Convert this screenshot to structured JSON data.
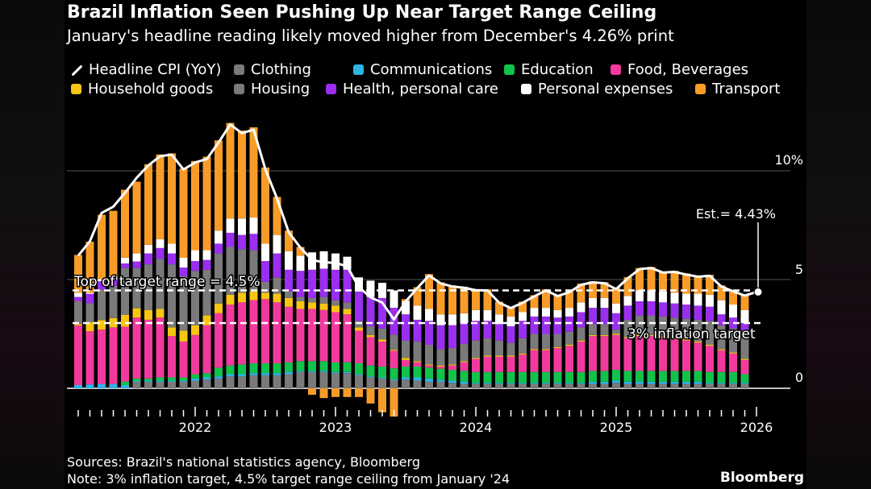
{
  "header": {
    "title": "Brazil Inflation Seen Pushing Up Near Target Range Ceiling",
    "subtitle": "January's headline reading likely moved higher from December's 4.26% print"
  },
  "footer": {
    "sources": "Sources: Brazil's national statistics agency, Bloomberg",
    "note": "Note: 3% inflation target, 4.5% target range ceiling from January '24",
    "brand": "Bloomberg"
  },
  "chart_data": {
    "type": "bar",
    "stacked": true,
    "title": "Brazil Inflation Seen Pushing Up Near Target Range Ceiling",
    "x_start": "2021-03",
    "x_end": "2025-12",
    "frequency": "monthly",
    "x_tick_labels": [
      "2022",
      "2023",
      "2024",
      "2025",
      "2026"
    ],
    "y_tick_labels": [
      "10%",
      "5",
      "0"
    ],
    "y_ticks": [
      10,
      5,
      0
    ],
    "ylim": [
      -1.4,
      12.5
    ],
    "grid": true,
    "legend_position": "top",
    "legend": [
      {
        "name": "Headline CPI (YoY)",
        "type": "line",
        "color": "#ffffff"
      },
      {
        "name": "Clothing",
        "color": "#7a7a7a"
      },
      {
        "name": "Communications",
        "color": "#2eb4e8"
      },
      {
        "name": "Education",
        "color": "#12c24a"
      },
      {
        "name": "Food, Beverages",
        "color": "#f23a9e"
      },
      {
        "name": "Household goods",
        "color": "#f7c513"
      },
      {
        "name": "Housing",
        "color": "#7a7a7a"
      },
      {
        "name": "Health, personal care",
        "color": "#9b2ff0"
      },
      {
        "name": "Personal expenses",
        "color": "#ffffff"
      },
      {
        "name": "Transport",
        "color": "#f89c28"
      }
    ],
    "series": [
      {
        "name": "Clothing",
        "color": "#7a7a7a",
        "values": [
          0,
          0,
          0,
          0,
          0,
          0.3,
          0.3,
          0.3,
          0.3,
          0.3,
          0.35,
          0.4,
          0.45,
          0.55,
          0.55,
          0.6,
          0.6,
          0.6,
          0.65,
          0.75,
          0.75,
          0.75,
          0.7,
          0.7,
          0.6,
          0.5,
          0.45,
          0.37,
          0.4,
          0.35,
          0.3,
          0.3,
          0.25,
          0.2,
          0.2,
          0.2,
          0.2,
          0.2,
          0.2,
          0.2,
          0.2,
          0.2,
          0.2,
          0.2,
          0.2,
          0.2,
          0.25,
          0.2,
          0.2,
          0.2,
          0.2,
          0.2,
          0.2,
          0.2,
          0.2,
          0.2,
          0.2,
          0.2
        ]
      },
      {
        "name": "Communications",
        "color": "#2eb4e8",
        "values": [
          0.15,
          0.18,
          0.2,
          0.2,
          0.15,
          0.05,
          0.05,
          0.05,
          0.05,
          0.05,
          0.1,
          0.1,
          0.1,
          0.1,
          0.1,
          0.1,
          0.1,
          0.1,
          0.1,
          0.05,
          0.05,
          0.05,
          0.05,
          0.05,
          0.05,
          0.05,
          0.05,
          0.05,
          0.1,
          0.15,
          0.15,
          0.1,
          0.1,
          0.1,
          0.05,
          0.05,
          0.05,
          0.05,
          0.05,
          0.05,
          0.05,
          0.05,
          0.05,
          0.05,
          0.1,
          0.1,
          0.1,
          0.1,
          0.1,
          0.1,
          0.1,
          0.1,
          0.1,
          0.1,
          0.05,
          0.05,
          0.05,
          0.05
        ]
      },
      {
        "name": "Education",
        "color": "#12c24a",
        "values": [
          0,
          0,
          0,
          0,
          0.15,
          0.1,
          0.1,
          0.15,
          0.15,
          0.15,
          0.2,
          0.2,
          0.4,
          0.4,
          0.45,
          0.45,
          0.45,
          0.45,
          0.45,
          0.45,
          0.45,
          0.45,
          0.45,
          0.45,
          0.5,
          0.5,
          0.5,
          0.5,
          0.5,
          0.5,
          0.5,
          0.5,
          0.5,
          0.5,
          0.5,
          0.5,
          0.5,
          0.5,
          0.5,
          0.5,
          0.5,
          0.5,
          0.5,
          0.5,
          0.5,
          0.5,
          0.5,
          0.5,
          0.5,
          0.5,
          0.5,
          0.5,
          0.5,
          0.5,
          0.5,
          0.5,
          0.5,
          0.4
        ]
      },
      {
        "name": "Food, Beverages",
        "color": "#f23a9e",
        "values": [
          2.74,
          2.44,
          2.5,
          2.6,
          2.53,
          2.8,
          2.7,
          2.75,
          1.9,
          1.65,
          1.8,
          2.2,
          2.5,
          2.8,
          2.85,
          2.9,
          2.95,
          2.8,
          2.55,
          2.4,
          2.4,
          2.35,
          2.3,
          2.2,
          1.5,
          1.3,
          1.15,
          0.8,
          0.3,
          0.2,
          0.1,
          0.1,
          0.2,
          0.4,
          0.6,
          0.7,
          0.7,
          0.7,
          0.8,
          1.0,
          1.0,
          1.1,
          1.2,
          1.4,
          1.6,
          1.6,
          1.6,
          1.5,
          1.6,
          1.6,
          1.55,
          1.45,
          1.4,
          1.3,
          1.2,
          1.0,
          0.85,
          0.65
        ]
      },
      {
        "name": "Household goods",
        "color": "#f7c513",
        "values": [
          0.06,
          0.43,
          0.43,
          0.43,
          0.55,
          0.43,
          0.45,
          0.4,
          0.4,
          0.5,
          0.45,
          0.45,
          0.45,
          0.45,
          0.45,
          0.4,
          0.3,
          0.4,
          0.4,
          0.35,
          0.3,
          0.3,
          0.3,
          0.25,
          0.15,
          0.1,
          0.1,
          0.05,
          0.1,
          0.05,
          0.05,
          0.05,
          0.05,
          0.05,
          0.05,
          0.05,
          0.05,
          0.05,
          0.05,
          0.05,
          0.05,
          0.05,
          0.05,
          0.05,
          0.05,
          0.05,
          0.05,
          0.05,
          0.05,
          0.05,
          0.05,
          0.05,
          0.05,
          0.05,
          0.05,
          0.05,
          0.05,
          0.05
        ]
      },
      {
        "name": "Housing",
        "color": "#7a7a7a",
        "values": [
          1.05,
          0.86,
          1.42,
          1.48,
          2.16,
          1.85,
          2.1,
          2.3,
          2.9,
          2.5,
          2.5,
          2.1,
          2.3,
          2.2,
          2.0,
          1.9,
          0.5,
          0.75,
          0.3,
          0.2,
          0.2,
          0.3,
          0.25,
          0.3,
          0.3,
          0.4,
          0.5,
          0.7,
          0.8,
          0.9,
          0.9,
          0.75,
          0.75,
          0.8,
          0.8,
          0.8,
          0.7,
          0.6,
          0.7,
          0.7,
          0.7,
          0.6,
          0.6,
          0.6,
          0.5,
          0.5,
          0.2,
          0.8,
          0.9,
          0.9,
          0.9,
          0.95,
          0.95,
          1.0,
          1.1,
          1.1,
          1.1,
          1.2
        ]
      },
      {
        "name": "Health, personal care",
        "color": "#9b2ff0",
        "values": [
          0.2,
          0.43,
          0.37,
          0.3,
          0.2,
          0.3,
          0.5,
          0.5,
          0.5,
          0.4,
          0.45,
          0.45,
          0.45,
          0.65,
          0.65,
          0.75,
          0.95,
          1.1,
          1.0,
          1.2,
          1.3,
          1.3,
          1.4,
          1.5,
          1.35,
          1.35,
          1.4,
          1.23,
          1.2,
          1.0,
          1.1,
          1.1,
          1.05,
          0.95,
          0.9,
          0.8,
          0.75,
          0.75,
          0.8,
          0.8,
          0.8,
          0.75,
          0.7,
          0.7,
          0.75,
          0.75,
          0.75,
          0.65,
          0.65,
          0.65,
          0.65,
          0.65,
          0.65,
          0.65,
          0.65,
          0.5,
          0.5,
          0.45
        ]
      },
      {
        "name": "Personal expenses",
        "color": "#ffffff",
        "values": [
          0.19,
          0.05,
          0.1,
          0.15,
          0.27,
          0.37,
          0.4,
          0.4,
          0.45,
          0.45,
          0.5,
          0.45,
          0.6,
          0.65,
          0.75,
          0.75,
          0.8,
          0.85,
          0.85,
          0.7,
          0.8,
          0.8,
          0.75,
          0.6,
          0.65,
          0.75,
          0.7,
          0.8,
          0.6,
          0.65,
          0.55,
          0.5,
          0.5,
          0.45,
          0.5,
          0.5,
          0.45,
          0.45,
          0.4,
          0.4,
          0.4,
          0.35,
          0.4,
          0.45,
          0.45,
          0.45,
          0.45,
          0.45,
          0.5,
          0.5,
          0.5,
          0.5,
          0.5,
          0.55,
          0.55,
          0.65,
          0.6,
          0.6
        ]
      },
      {
        "name": "Transport",
        "color": "#f89c28",
        "values": [
          1.74,
          2.35,
          2.96,
          3.0,
          3.12,
          3.3,
          3.7,
          3.9,
          4.15,
          4.1,
          4.1,
          4.3,
          4.15,
          4.4,
          4.05,
          4.15,
          3.5,
          1.75,
          0.95,
          0.4,
          -0.3,
          -0.45,
          -0.4,
          -0.4,
          -0.4,
          -0.7,
          -1.1,
          -1.3,
          0.1,
          0.85,
          1.6,
          1.47,
          1.33,
          1.22,
          0.96,
          0.95,
          0.58,
          0.44,
          0.48,
          0.58,
          0.85,
          0.69,
          0.77,
          0.86,
          0.77,
          0.73,
          0.71,
          0.86,
          1.03,
          1.08,
          0.92,
          1.0,
          0.93,
          0.83,
          0.92,
          0.68,
          0.66,
          0.71
        ]
      }
    ],
    "headline": {
      "name": "Headline CPI (YoY)",
      "values": [
        6.1,
        6.76,
        8.06,
        8.35,
        8.99,
        9.68,
        10.25,
        10.67,
        10.74,
        10.06,
        10.38,
        10.54,
        11.3,
        12.13,
        11.73,
        11.89,
        10.07,
        8.73,
        7.17,
        6.47,
        5.9,
        5.79,
        5.77,
        5.6,
        4.65,
        4.18,
        3.94,
        3.16,
        3.99,
        4.61,
        5.19,
        4.82,
        4.68,
        4.62,
        4.51,
        4.5,
        3.93,
        3.69,
        3.93,
        4.23,
        4.5,
        4.24,
        4.42,
        4.76,
        4.87,
        4.83,
        4.56,
        5.06,
        5.48,
        5.53,
        5.32,
        5.35,
        5.23,
        5.13,
        5.17,
        4.68,
        4.46,
        4.26
      ]
    },
    "estimate": {
      "label": "Est.= 4.43%",
      "period": "2026-01",
      "value": 4.43
    },
    "reference_lines": [
      {
        "label": "Top of target range = 4.5%",
        "value": 4.5
      },
      {
        "label": "3% inflation target",
        "value": 3
      }
    ]
  }
}
